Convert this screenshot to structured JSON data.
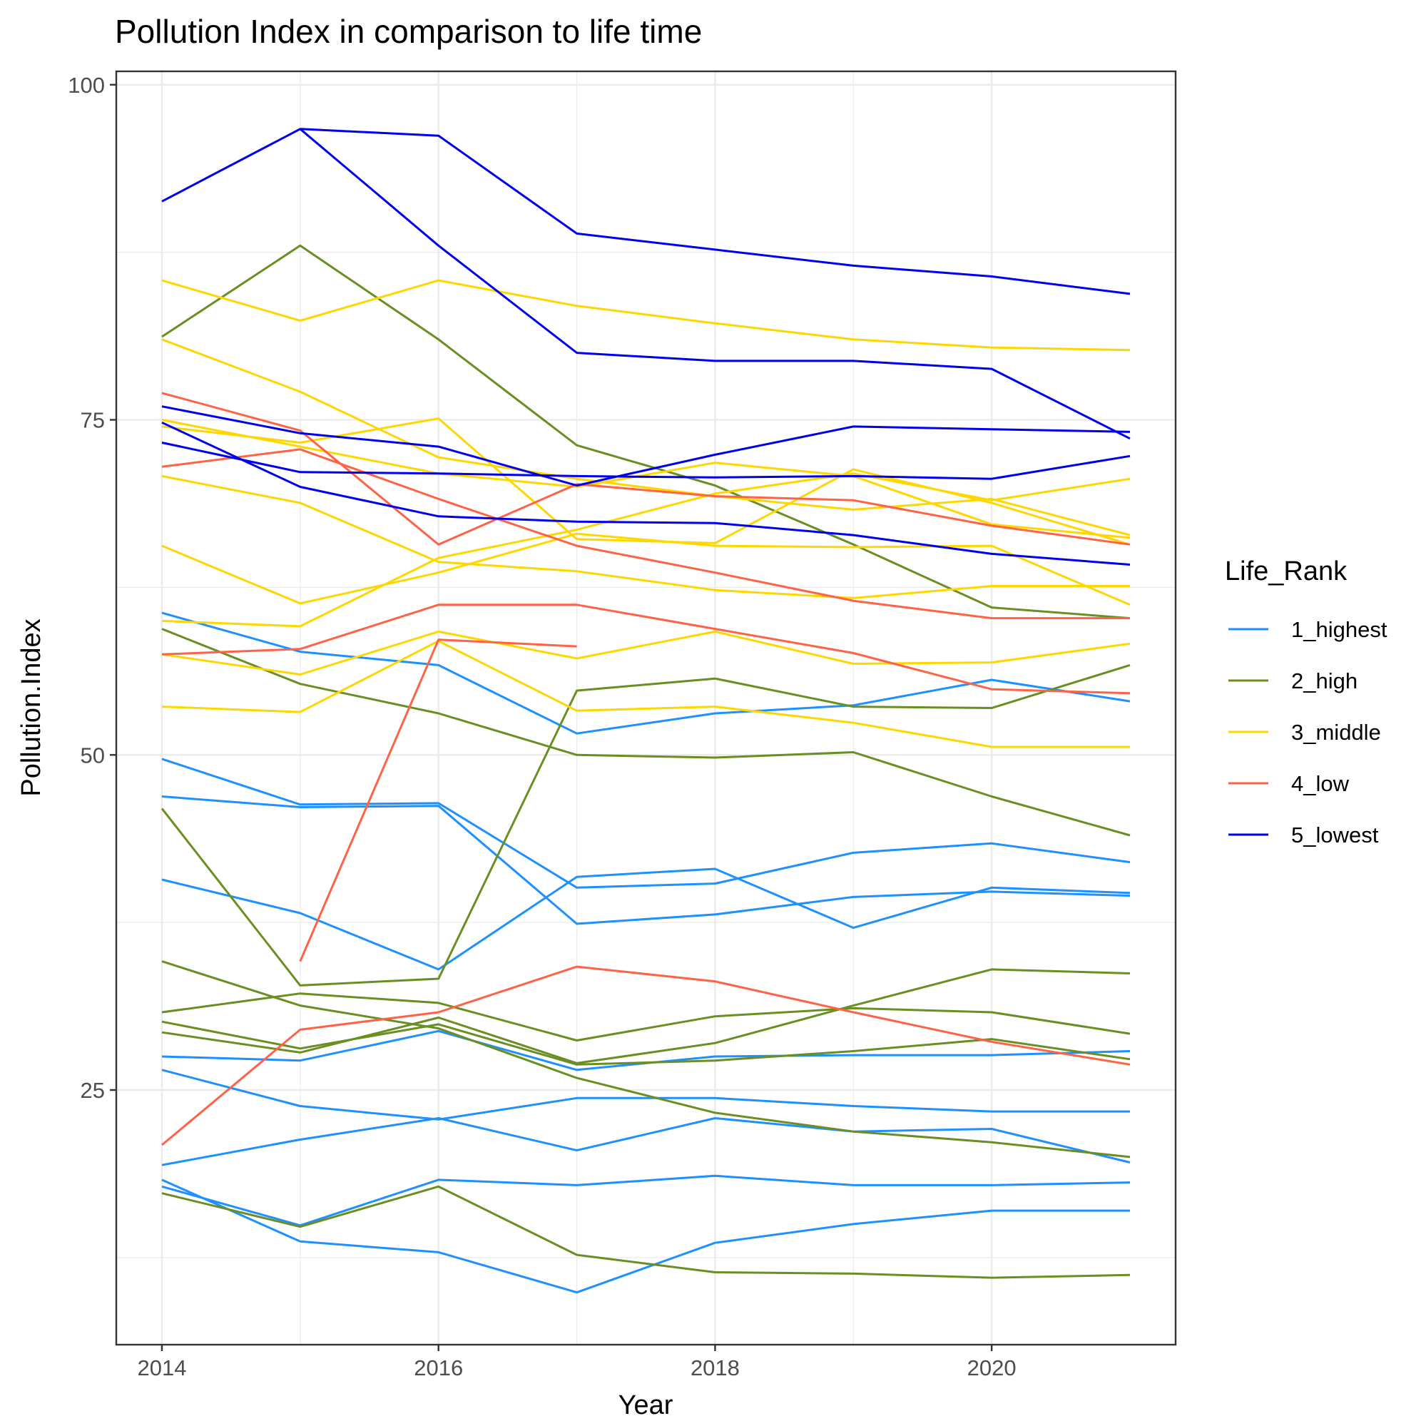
{
  "chart_data": {
    "type": "line",
    "title": "Pollution Index in comparison to life time",
    "xlabel": "Year",
    "ylabel": "Pollution.Index",
    "xlim": [
      2013.67,
      2021.33
    ],
    "ylim": [
      6.0,
      101.0
    ],
    "x_ticks": [
      2014,
      2016,
      2018,
      2020
    ],
    "y_ticks": [
      25,
      50,
      75,
      100
    ],
    "grid": true,
    "legend": {
      "title": "Life_Rank",
      "placement": "right"
    },
    "groups": [
      {
        "name": "1_highest",
        "color": "#1E90FF"
      },
      {
        "name": "2_high",
        "color": "#6B8E23"
      },
      {
        "name": "3_middle",
        "color": "#FFD700"
      },
      {
        "name": "4_low",
        "color": "#FF6347"
      },
      {
        "name": "5_lowest",
        "color": "#0000EE"
      }
    ],
    "series": [
      {
        "group": "1_highest",
        "x": [
          2014,
          2015,
          2016,
          2017,
          2018,
          2019,
          2020,
          2021
        ],
        "y": [
          60.6,
          57.7,
          56.7,
          51.6,
          53.1,
          53.7,
          55.6,
          54.0
        ]
      },
      {
        "group": "1_highest",
        "x": [
          2014,
          2015,
          2016,
          2017,
          2018,
          2019,
          2020,
          2021
        ],
        "y": [
          49.7,
          46.3,
          46.4,
          40.1,
          40.4,
          42.7,
          43.4,
          42.0
        ]
      },
      {
        "group": "1_highest",
        "x": [
          2014,
          2015,
          2016,
          2017,
          2018,
          2019,
          2020,
          2021
        ],
        "y": [
          46.9,
          46.1,
          46.2,
          37.4,
          38.1,
          39.4,
          39.8,
          39.5
        ]
      },
      {
        "group": "1_highest",
        "x": [
          2014,
          2015,
          2016,
          2017,
          2018,
          2019,
          2020,
          2021
        ],
        "y": [
          40.7,
          38.2,
          34.0,
          40.9,
          41.5,
          37.1,
          40.1,
          39.7
        ]
      },
      {
        "group": "1_highest",
        "x": [
          2014,
          2015,
          2016,
          2017,
          2018,
          2019,
          2020,
          2021
        ],
        "y": [
          27.5,
          27.2,
          29.4,
          26.5,
          27.5,
          27.6,
          27.6,
          27.9
        ]
      },
      {
        "group": "1_highest",
        "x": [
          2014,
          2015,
          2016,
          2017,
          2018,
          2019,
          2020,
          2021
        ],
        "y": [
          26.5,
          23.8,
          22.8,
          24.4,
          24.4,
          23.8,
          23.4,
          23.4
        ]
      },
      {
        "group": "1_highest",
        "x": [
          2014,
          2015,
          2016,
          2017,
          2018,
          2019,
          2020,
          2021
        ],
        "y": [
          19.4,
          21.3,
          22.9,
          20.5,
          22.9,
          21.9,
          22.1,
          19.6
        ]
      },
      {
        "group": "1_highest",
        "x": [
          2014,
          2015,
          2016,
          2017,
          2018,
          2019,
          2020,
          2021
        ],
        "y": [
          17.8,
          14.9,
          18.3,
          17.9,
          18.6,
          17.9,
          17.9,
          18.1
        ]
      },
      {
        "group": "1_highest",
        "x": [
          2014,
          2015,
          2016,
          2017,
          2018,
          2019,
          2020,
          2021
        ],
        "y": [
          18.3,
          13.7,
          12.9,
          9.9,
          13.6,
          15.0,
          16.0,
          16.0
        ]
      },
      {
        "group": "2_high",
        "x": [
          2014,
          2015,
          2016,
          2017,
          2018,
          2019,
          2020,
          2021
        ],
        "y": [
          81.2,
          88.0,
          81.0,
          73.1,
          70.1,
          65.7,
          61.0,
          60.2
        ]
      },
      {
        "group": "2_high",
        "x": [
          2014,
          2015,
          2016,
          2017,
          2018,
          2019,
          2020,
          2021
        ],
        "y": [
          59.4,
          55.3,
          53.1,
          50.0,
          49.8,
          50.2,
          46.9,
          44.0
        ]
      },
      {
        "group": "2_high",
        "x": [
          2014,
          2015,
          2016,
          2017,
          2018,
          2019,
          2020,
          2021
        ],
        "y": [
          46.0,
          32.8,
          33.3,
          54.8,
          55.7,
          53.6,
          53.5,
          56.7
        ]
      },
      {
        "group": "2_high",
        "x": [
          2014,
          2015,
          2016,
          2017,
          2018,
          2019,
          2020,
          2021
        ],
        "y": [
          34.6,
          31.3,
          29.6,
          25.9,
          23.3,
          21.9,
          21.1,
          20.0
        ]
      },
      {
        "group": "2_high",
        "x": [
          2014,
          2015,
          2016,
          2017,
          2018,
          2019,
          2020,
          2021
        ],
        "y": [
          30.8,
          32.2,
          31.5,
          28.7,
          30.5,
          31.1,
          30.8,
          29.2
        ]
      },
      {
        "group": "2_high",
        "x": [
          2014,
          2015,
          2016,
          2017,
          2018,
          2019,
          2020,
          2021
        ],
        "y": [
          30.1,
          28.1,
          29.9,
          26.9,
          27.2,
          27.9,
          28.8,
          27.3
        ]
      },
      {
        "group": "2_high",
        "x": [
          2014,
          2015,
          2016,
          2017,
          2018,
          2019,
          2020,
          2021
        ],
        "y": [
          29.3,
          27.8,
          30.4,
          27.0,
          28.5,
          31.3,
          34.0,
          33.7
        ]
      },
      {
        "group": "2_high",
        "x": [
          2014,
          2015,
          2016,
          2017,
          2018,
          2019,
          2020,
          2021
        ],
        "y": [
          17.3,
          14.8,
          17.8,
          12.7,
          11.4,
          11.3,
          11.0,
          11.2
        ]
      },
      {
        "group": "3_middle",
        "x": [
          2014,
          2015,
          2016,
          2017,
          2018,
          2019,
          2020,
          2021
        ],
        "y": [
          85.4,
          82.4,
          85.4,
          83.5,
          82.2,
          81.0,
          80.4,
          80.2
        ]
      },
      {
        "group": "3_middle",
        "x": [
          2014,
          2015,
          2016,
          2017,
          2018,
          2019,
          2020,
          2021
        ],
        "y": [
          81.0,
          77.1,
          72.2,
          70.6,
          69.3,
          68.3,
          69.1,
          66.4
        ]
      },
      {
        "group": "3_middle",
        "x": [
          2014,
          2015,
          2016,
          2017,
          2018,
          2019,
          2020,
          2021
        ],
        "y": [
          74.5,
          73.3,
          75.1,
          66.1,
          65.8,
          71.3,
          68.8,
          65.7
        ]
      },
      {
        "group": "3_middle",
        "x": [
          2014,
          2015,
          2016,
          2017,
          2018,
          2019,
          2020,
          2021
        ],
        "y": [
          70.8,
          68.8,
          64.4,
          63.7,
          62.3,
          61.7,
          62.6,
          62.6
        ]
      },
      {
        "group": "3_middle",
        "x": [
          2014,
          2015,
          2016,
          2017,
          2018,
          2019,
          2020,
          2021
        ],
        "y": [
          65.6,
          61.3,
          63.6,
          66.5,
          65.6,
          65.5,
          65.6,
          61.2
        ]
      },
      {
        "group": "3_middle",
        "x": [
          2014,
          2015,
          2016,
          2017,
          2018,
          2019,
          2020,
          2021
        ],
        "y": [
          60.0,
          59.6,
          64.7,
          66.8,
          69.5,
          71.0,
          69.0,
          70.6
        ]
      },
      {
        "group": "3_middle",
        "x": [
          2014,
          2015,
          2016,
          2017,
          2018,
          2019,
          2020,
          2021
        ],
        "y": [
          57.5,
          56.0,
          59.2,
          57.2,
          59.2,
          56.8,
          56.9,
          58.3
        ]
      },
      {
        "group": "3_middle",
        "x": [
          2014,
          2015,
          2016,
          2017,
          2018,
          2019,
          2020,
          2021
        ],
        "y": [
          53.6,
          53.2,
          58.5,
          53.3,
          53.6,
          52.4,
          50.6,
          50.6
        ]
      },
      {
        "group": "3_middle",
        "x": [
          2014,
          2015,
          2016,
          2017,
          2018,
          2019,
          2020,
          2021
        ],
        "y": [
          75.0,
          73.0,
          71.0,
          70.0,
          71.8,
          70.8,
          67.2,
          66.2
        ]
      },
      {
        "group": "4_low",
        "x": [
          2014,
          2015,
          2016,
          2017,
          2018,
          2019,
          2020,
          2021
        ],
        "y": [
          77.0,
          74.2,
          65.7,
          70.2,
          69.3,
          69.0,
          67.1,
          65.7
        ]
      },
      {
        "group": "4_low",
        "x": [
          2014,
          2015,
          2016,
          2017,
          2018,
          2019,
          2020,
          2021
        ],
        "y": [
          71.5,
          72.8,
          69.1,
          65.6,
          63.6,
          61.5,
          60.2,
          60.2
        ]
      },
      {
        "group": "4_low",
        "x": [
          2014,
          2015,
          2016,
          2017,
          2018,
          2019,
          2020,
          2021
        ],
        "y": [
          57.5,
          57.9,
          61.2,
          61.2,
          59.4,
          57.6,
          54.9,
          54.6
        ]
      },
      {
        "group": "4_low",
        "x": [
          2015,
          2016,
          2017
        ],
        "y": [
          34.6,
          58.6,
          58.1
        ]
      },
      {
        "group": "4_low",
        "x": [
          2014,
          2015,
          2016,
          2017,
          2018,
          2019,
          2020,
          2021
        ],
        "y": [
          20.9,
          29.5,
          30.8,
          34.2,
          33.1,
          30.8,
          28.6,
          26.9
        ]
      },
      {
        "group": "5_lowest",
        "x": [
          2014,
          2015,
          2016,
          2017,
          2018,
          2019,
          2020,
          2021
        ],
        "y": [
          91.3,
          96.7,
          96.2,
          88.9,
          87.7,
          86.5,
          85.7,
          84.4
        ]
      },
      {
        "group": "5_lowest",
        "x": [
          2014,
          2015,
          2016,
          2017,
          2018,
          2019,
          2020,
          2021
        ],
        "y": [
          76.0,
          74.0,
          73.0,
          70.1,
          72.4,
          74.5,
          74.3,
          74.1
        ]
      },
      {
        "group": "5_lowest",
        "x": [
          2014,
          2015,
          2016,
          2017,
          2018,
          2019,
          2020,
          2021
        ],
        "y": [
          73.3,
          71.1,
          71.0,
          70.8,
          70.7,
          70.8,
          70.6,
          72.3
        ]
      },
      {
        "group": "5_lowest",
        "x": [
          2014,
          2015,
          2016,
          2017,
          2018,
          2019,
          2020,
          2021
        ],
        "y": [
          74.8,
          70.0,
          67.8,
          67.4,
          67.3,
          66.4,
          65.0,
          64.2
        ]
      },
      {
        "group": "5_lowest",
        "x": [
          2015,
          2016,
          2017,
          2018,
          2019,
          2020,
          2021
        ],
        "y": [
          96.7,
          88.0,
          80.0,
          79.4,
          79.4,
          78.8,
          73.6
        ]
      }
    ]
  }
}
